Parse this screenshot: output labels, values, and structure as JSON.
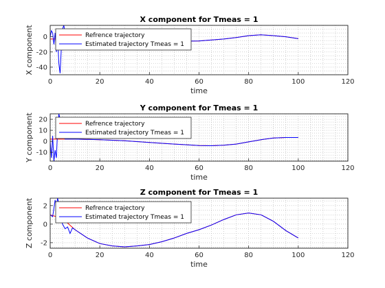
{
  "chart_data": [
    {
      "type": "line",
      "title": "X component for Tmeas = 1",
      "xlabel": "time",
      "ylabel": "X component",
      "xlim": [
        0,
        120
      ],
      "ylim": [
        -50,
        15
      ],
      "xticks": [
        0,
        20,
        40,
        60,
        80,
        100,
        120
      ],
      "yticks": [
        -40,
        -20,
        0
      ],
      "grid": true,
      "legend_position": "top-left",
      "series": [
        {
          "name": "Refrence trajectory",
          "color": "#ff0000",
          "x": [
            0,
            5,
            10,
            20,
            30,
            40,
            50,
            60,
            70,
            75,
            80,
            85,
            90,
            95,
            100
          ],
          "y": [
            -3,
            -3,
            -3,
            -3.5,
            -4.5,
            -5.5,
            -6,
            -5.5,
            -3,
            -1,
            1.5,
            2.5,
            1.5,
            0,
            -2.5
          ]
        },
        {
          "name": "Estimated trajectory Tmeas = 1",
          "color": "#0000ff",
          "x": [
            0,
            0.5,
            1,
            1.5,
            2,
            2.5,
            3,
            3.5,
            4,
            4.5,
            5,
            5.5,
            6,
            7,
            10,
            20,
            30,
            40,
            50,
            60,
            70,
            75,
            80,
            85,
            90,
            95,
            100
          ],
          "y": [
            0,
            8,
            5,
            -10,
            5,
            -20,
            0,
            -35,
            -48,
            -15,
            10,
            15,
            5,
            -3,
            -3,
            -3.5,
            -4.5,
            -5.5,
            -6,
            -5.5,
            -3,
            -1,
            1.5,
            2.5,
            1.5,
            0,
            -2.5
          ]
        }
      ]
    },
    {
      "type": "line",
      "title": "Y component for Tmeas = 1",
      "xlabel": "time",
      "ylabel": "Y component",
      "xlim": [
        0,
        120
      ],
      "ylim": [
        -18,
        25
      ],
      "xticks": [
        0,
        20,
        40,
        60,
        80,
        100,
        120
      ],
      "yticks": [
        -10,
        0,
        10,
        20
      ],
      "grid": true,
      "legend_position": "top-left",
      "series": [
        {
          "name": "Refrence trajectory",
          "color": "#ff0000",
          "x": [
            0,
            5,
            10,
            20,
            30,
            40,
            50,
            60,
            65,
            70,
            75,
            80,
            85,
            90,
            95,
            100
          ],
          "y": [
            2,
            2,
            2,
            1.5,
            0.5,
            -1,
            -2.5,
            -3.8,
            -4,
            -3.5,
            -2.5,
            -0.5,
            1.5,
            3,
            3.5,
            3.5
          ]
        },
        {
          "name": "Estimated trajectory Tmeas = 1",
          "color": "#0000ff",
          "x": [
            0,
            0.5,
            1,
            1.5,
            2,
            2.5,
            3,
            3.5,
            4,
            4.5,
            5,
            6,
            8,
            10,
            20,
            30,
            40,
            50,
            60,
            65,
            70,
            75,
            80,
            85,
            90,
            95,
            100
          ],
          "y": [
            0,
            -15,
            5,
            -18,
            -8,
            -15,
            10,
            25,
            20,
            18,
            5,
            2,
            2,
            2,
            1.5,
            0.5,
            -1,
            -2.5,
            -3.8,
            -4,
            -3.5,
            -2.5,
            -0.5,
            1.5,
            3,
            3.5,
            3.5
          ]
        }
      ]
    },
    {
      "type": "line",
      "title": "Z component for Tmeas = 1",
      "xlabel": "time",
      "ylabel": "Z component",
      "xlim": [
        0,
        120
      ],
      "ylim": [
        -2.6,
        2.8
      ],
      "xticks": [
        0,
        20,
        40,
        60,
        80,
        100,
        120
      ],
      "yticks": [
        -2,
        0,
        2
      ],
      "grid": true,
      "legend_position": "top-left",
      "series": [
        {
          "name": "Refrence trajectory",
          "color": "#ff0000",
          "x": [
            0,
            5,
            10,
            15,
            20,
            25,
            30,
            35,
            40,
            45,
            50,
            55,
            60,
            65,
            70,
            75,
            80,
            85,
            90,
            95,
            100
          ],
          "y": [
            1,
            0.6,
            -0.6,
            -1.5,
            -2.1,
            -2.35,
            -2.45,
            -2.35,
            -2.2,
            -1.9,
            -1.5,
            -1.0,
            -0.6,
            -0.1,
            0.5,
            1.0,
            1.2,
            1.0,
            0.3,
            -0.7,
            -1.5
          ]
        },
        {
          "name": "Estimated trajectory Tmeas = 1",
          "color": "#0000ff",
          "x": [
            0,
            1,
            2,
            2.5,
            3,
            3.5,
            4,
            5,
            6,
            7,
            8,
            9,
            10,
            15,
            20,
            25,
            30,
            35,
            40,
            45,
            50,
            55,
            60,
            65,
            70,
            75,
            80,
            85,
            90,
            95,
            100
          ],
          "y": [
            1,
            0.8,
            2.6,
            2.0,
            2.8,
            2.2,
            0.8,
            0.0,
            -0.5,
            -0.3,
            -1.0,
            -0.4,
            -0.6,
            -1.5,
            -2.1,
            -2.35,
            -2.45,
            -2.35,
            -2.2,
            -1.9,
            -1.5,
            -1.0,
            -0.6,
            -0.1,
            0.5,
            1.0,
            1.2,
            1.0,
            0.3,
            -0.7,
            -1.5
          ]
        }
      ]
    }
  ]
}
